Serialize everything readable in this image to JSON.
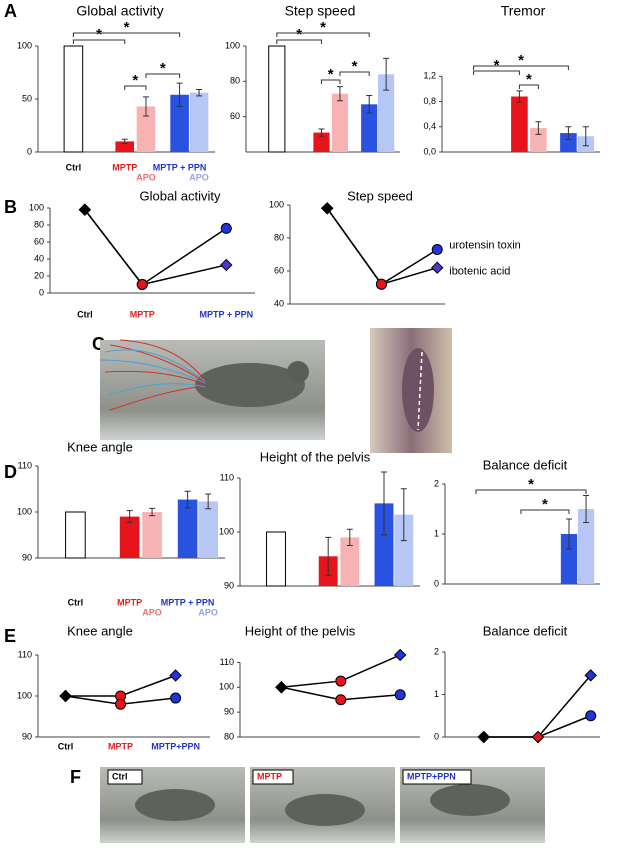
{
  "panel_labels": [
    "A",
    "B",
    "C",
    "D",
    "E",
    "F"
  ],
  "photo_labels": [
    "Ctrl",
    "MPTP",
    "MPTP+PPN"
  ],
  "photo_label_colors": [
    "#000000",
    "#e8141c",
    "#2233cc"
  ],
  "chart_data": [
    {
      "type": "bar",
      "title": "Global activity",
      "categories": [
        "Ctrl",
        "MPTP",
        "APO",
        "MPTP + PPN",
        "APO"
      ],
      "category_colors": [
        "#000000",
        "#e02020",
        "#f07070",
        "#2233cc",
        "#8fa3ee"
      ],
      "values": [
        100,
        10,
        43,
        54,
        56
      ],
      "errors": [
        null,
        2,
        9,
        11,
        3
      ],
      "colors": [
        "#ffffff",
        "#e8141c",
        "#f7b3b3",
        "#2a52e0",
        "#b7c7f5"
      ],
      "ylim": [
        0,
        100
      ],
      "yticks": [
        0,
        50,
        100
      ],
      "annotations": [
        "*",
        "*",
        "*",
        "*"
      ]
    },
    {
      "type": "bar",
      "title": "Step speed",
      "categories": [
        null,
        null,
        null,
        null,
        null
      ],
      "values": [
        100,
        51,
        73,
        67,
        84
      ],
      "errors": [
        null,
        2,
        4,
        5,
        9
      ],
      "colors": [
        "#ffffff",
        "#e8141c",
        "#f7b3b3",
        "#2a52e0",
        "#b7c7f5"
      ],
      "ylim": [
        40,
        100
      ],
      "yticks": [
        60,
        80,
        100
      ],
      "annotations": [
        "*",
        "*",
        "*",
        "*"
      ]
    },
    {
      "type": "bar",
      "title": "Tremor",
      "categories": [
        null,
        null,
        null,
        null,
        null
      ],
      "values": [
        0,
        0.88,
        0.38,
        0.3,
        0.25
      ],
      "errors": [
        null,
        0.09,
        0.1,
        0.1,
        0.15
      ],
      "colors": [
        "#ffffff",
        "#e8141c",
        "#f7b3b3",
        "#2a52e0",
        "#b7c7f5"
      ],
      "ylim": [
        0,
        1.3
      ],
      "yticks": [
        {
          "value": 0,
          "label": "0,0"
        },
        {
          "value": 0.4,
          "label": "0,4"
        },
        {
          "value": 0.8,
          "label": "0,8"
        },
        {
          "value": 1.2,
          "label": "1,2"
        }
      ],
      "annotations": [
        "*",
        "*",
        "*"
      ]
    },
    {
      "type": "line",
      "title": "Global activity",
      "categories": [
        "Ctrl",
        "MPTP",
        "MPTP + PPN"
      ],
      "category_colors": [
        "#000000",
        "#e02020",
        "#2233cc"
      ],
      "ylim": [
        0,
        100
      ],
      "yticks": [
        0,
        20,
        40,
        60,
        80,
        100
      ],
      "series": [
        {
          "values": [
            98,
            10,
            76
          ],
          "markers": [
            "diamond",
            "circle",
            "circle"
          ],
          "colors": [
            "#000000",
            "#e8141c",
            "#2233dd"
          ]
        },
        {
          "values": [
            98,
            10,
            33
          ],
          "markers": [
            "diamond",
            "circle",
            "diamond"
          ],
          "colors": [
            "#000000",
            "#e8141c",
            "#5533cc"
          ]
        }
      ]
    },
    {
      "type": "line",
      "title": "Step speed",
      "categories": [
        null,
        null,
        null
      ],
      "ylim": [
        40,
        100
      ],
      "yticks": [
        40,
        60,
        80,
        100
      ],
      "series": [
        {
          "name": "urotensin toxin",
          "values": [
            98,
            52,
            73
          ],
          "markers": [
            "diamond",
            "circle",
            "circle"
          ],
          "colors": [
            "#000000",
            "#e8141c",
            "#2233dd"
          ]
        },
        {
          "name": "ibotenic acid",
          "values": [
            98,
            52,
            62
          ],
          "markers": [
            "diamond",
            "circle",
            "diamond"
          ],
          "colors": [
            "#000000",
            "#e8141c",
            "#5533cc"
          ]
        }
      ]
    },
    {
      "type": "bar",
      "title": "Knee angle",
      "categories": [
        "Ctrl",
        "MPTP",
        "APO",
        "MPTP + PPN",
        "APO"
      ],
      "category_colors": [
        "#000000",
        "#e02020",
        "#f07070",
        "#2233cc",
        "#8fa3ee"
      ],
      "values": [
        100,
        99,
        100,
        102.7,
        102.3
      ],
      "errors": [
        null,
        1.3,
        0.8,
        1.8,
        1.6
      ],
      "colors": [
        "#ffffff",
        "#e8141c",
        "#f7b3b3",
        "#2a52e0",
        "#b7c7f5"
      ],
      "ylim": [
        90,
        110
      ],
      "yticks": [
        90,
        100,
        110
      ],
      "annotations": []
    },
    {
      "type": "bar",
      "title": "Height of the pelvis",
      "categories": [
        null,
        null,
        null,
        null,
        null
      ],
      "values": [
        100,
        95.5,
        99,
        105.3,
        103.2
      ],
      "errors": [
        null,
        3.5,
        1.5,
        5.8,
        4.8
      ],
      "colors": [
        "#ffffff",
        "#e8141c",
        "#f7b3b3",
        "#2a52e0",
        "#b7c7f5"
      ],
      "ylim": [
        90,
        110
      ],
      "yticks": [
        90,
        100,
        110
      ],
      "annotations": []
    },
    {
      "type": "bar",
      "title": "Balance deficit",
      "categories": [
        null,
        null,
        null,
        null,
        null
      ],
      "values": [
        0,
        0,
        0,
        1,
        1.5
      ],
      "errors": [
        null,
        null,
        null,
        0.3,
        0.27
      ],
      "colors": [
        "#ffffff",
        "#e8141c",
        "#f7b3b3",
        "#2a52e0",
        "#b7c7f5"
      ],
      "ylim": [
        0,
        2
      ],
      "yticks": [
        0,
        1,
        2
      ],
      "annotations": [
        "*",
        "*"
      ]
    },
    {
      "type": "line",
      "title": "Knee angle",
      "categories": [
        "Ctrl",
        "MPTP",
        "MPTP+PPN"
      ],
      "category_colors": [
        "#000000",
        "#e02020",
        "#2233cc"
      ],
      "ylim": [
        90,
        110
      ],
      "yticks": [
        90,
        100,
        110
      ],
      "series": [
        {
          "values": [
            100,
            100,
            105
          ],
          "markers": [
            "diamond",
            "circle",
            "diamond"
          ],
          "colors": [
            "#000000",
            "#e8141c",
            "#2233dd"
          ]
        },
        {
          "values": [
            100,
            98,
            99.5
          ],
          "markers": [
            "diamond",
            "circle",
            "circle"
          ],
          "colors": [
            "#000000",
            "#e8141c",
            "#2233dd"
          ]
        }
      ]
    },
    {
      "type": "line",
      "title": "Height of the pelvis",
      "categories": [
        null,
        null,
        null
      ],
      "ylim": [
        80,
        115
      ],
      "yticks": [
        80,
        90,
        100,
        110
      ],
      "series": [
        {
          "values": [
            100,
            102.5,
            113
          ],
          "markers": [
            "diamond",
            "circle",
            "diamond"
          ],
          "colors": [
            "#000000",
            "#e8141c",
            "#2233dd"
          ]
        },
        {
          "values": [
            100,
            95,
            97
          ],
          "markers": [
            "diamond",
            "circle",
            "circle"
          ],
          "colors": [
            "#000000",
            "#e8141c",
            "#2233dd"
          ]
        }
      ]
    },
    {
      "type": "line",
      "title": "Balance deficit",
      "categories": [
        null,
        null,
        null
      ],
      "ylim": [
        0,
        2
      ],
      "yticks": [
        0,
        1,
        2
      ],
      "series": [
        {
          "values": [
            0,
            0,
            1.45
          ],
          "markers": [
            "diamond",
            "diamond",
            "diamond"
          ],
          "colors": [
            "#000000",
            "#e8141c",
            "#2233dd"
          ]
        },
        {
          "values": [
            0,
            0,
            0.5
          ],
          "markers": [
            "diamond",
            "diamond",
            "circle"
          ],
          "colors": [
            "#000000",
            "#e8141c",
            "#2233dd"
          ]
        }
      ]
    }
  ]
}
